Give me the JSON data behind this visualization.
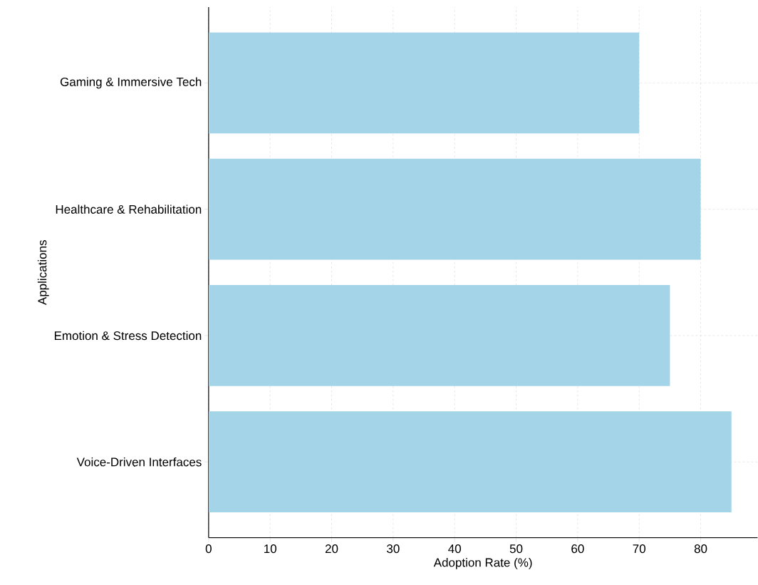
{
  "chart_data": {
    "type": "bar",
    "orientation": "horizontal",
    "categories": [
      "Gaming & Immersive Tech",
      "Healthcare & Rehabilitation",
      "Emotion & Stress Detection",
      "Voice-Driven Interfaces"
    ],
    "values": [
      70,
      80,
      75,
      85
    ],
    "color": "#a3d4e8",
    "xlabel": "Adoption Rate (%)",
    "ylabel": "Applications",
    "xlim": [
      0,
      89.25
    ],
    "xticks": [
      0,
      10,
      20,
      30,
      40,
      50,
      60,
      70,
      80
    ],
    "grid": true
  }
}
